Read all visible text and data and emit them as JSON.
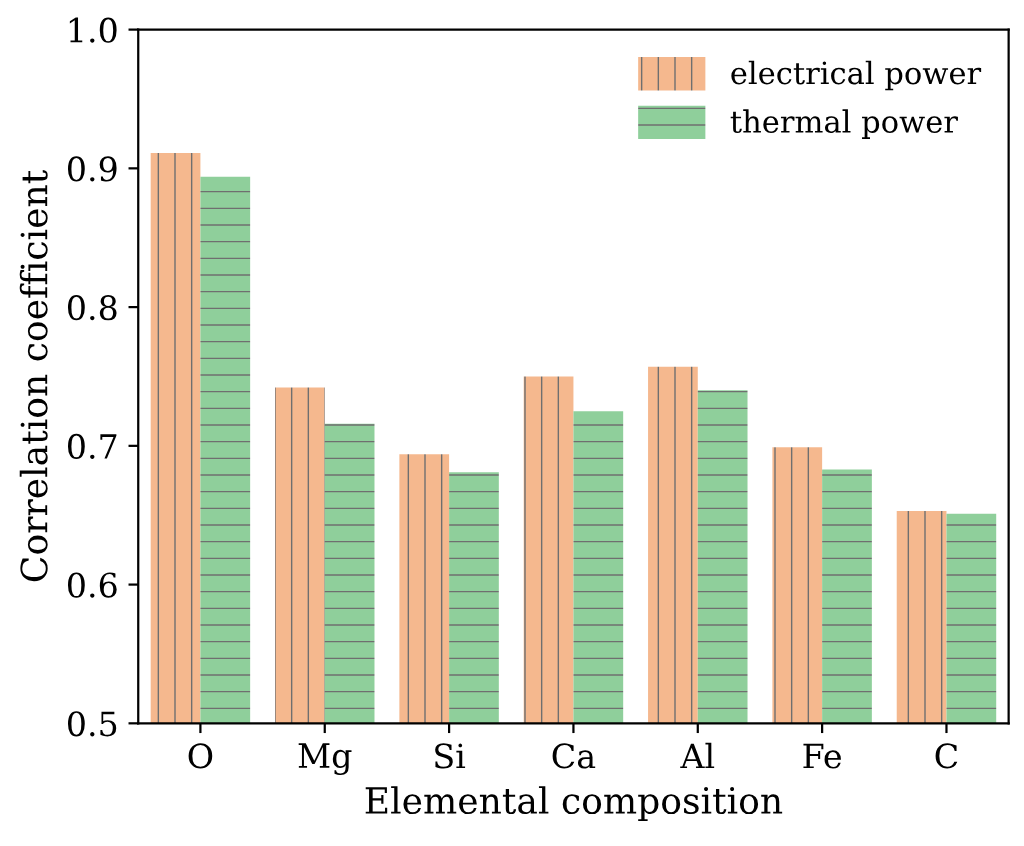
{
  "chart_data": {
    "type": "bar",
    "xlabel": "Elemental composition",
    "ylabel": "Correlation coefficient",
    "categories": [
      "O",
      "Mg",
      "Si",
      "Ca",
      "Al",
      "Fe",
      "C"
    ],
    "series": [
      {
        "name": "electrical power",
        "color": "#f5b88e",
        "values": [
          0.911,
          0.742,
          0.694,
          0.75,
          0.757,
          0.699,
          0.653
        ]
      },
      {
        "name": "thermal power",
        "color": "#8fcf9b",
        "values": [
          0.894,
          0.716,
          0.681,
          0.725,
          0.74,
          0.683,
          0.651
        ]
      }
    ],
    "ylim": [
      0.5,
      1.0
    ],
    "yticks": [
      0.5,
      0.6,
      0.7,
      0.8,
      0.9,
      {
        "value": 1.0,
        "label": "1.0"
      }
    ],
    "legend": "top right",
    "grid": false
  }
}
